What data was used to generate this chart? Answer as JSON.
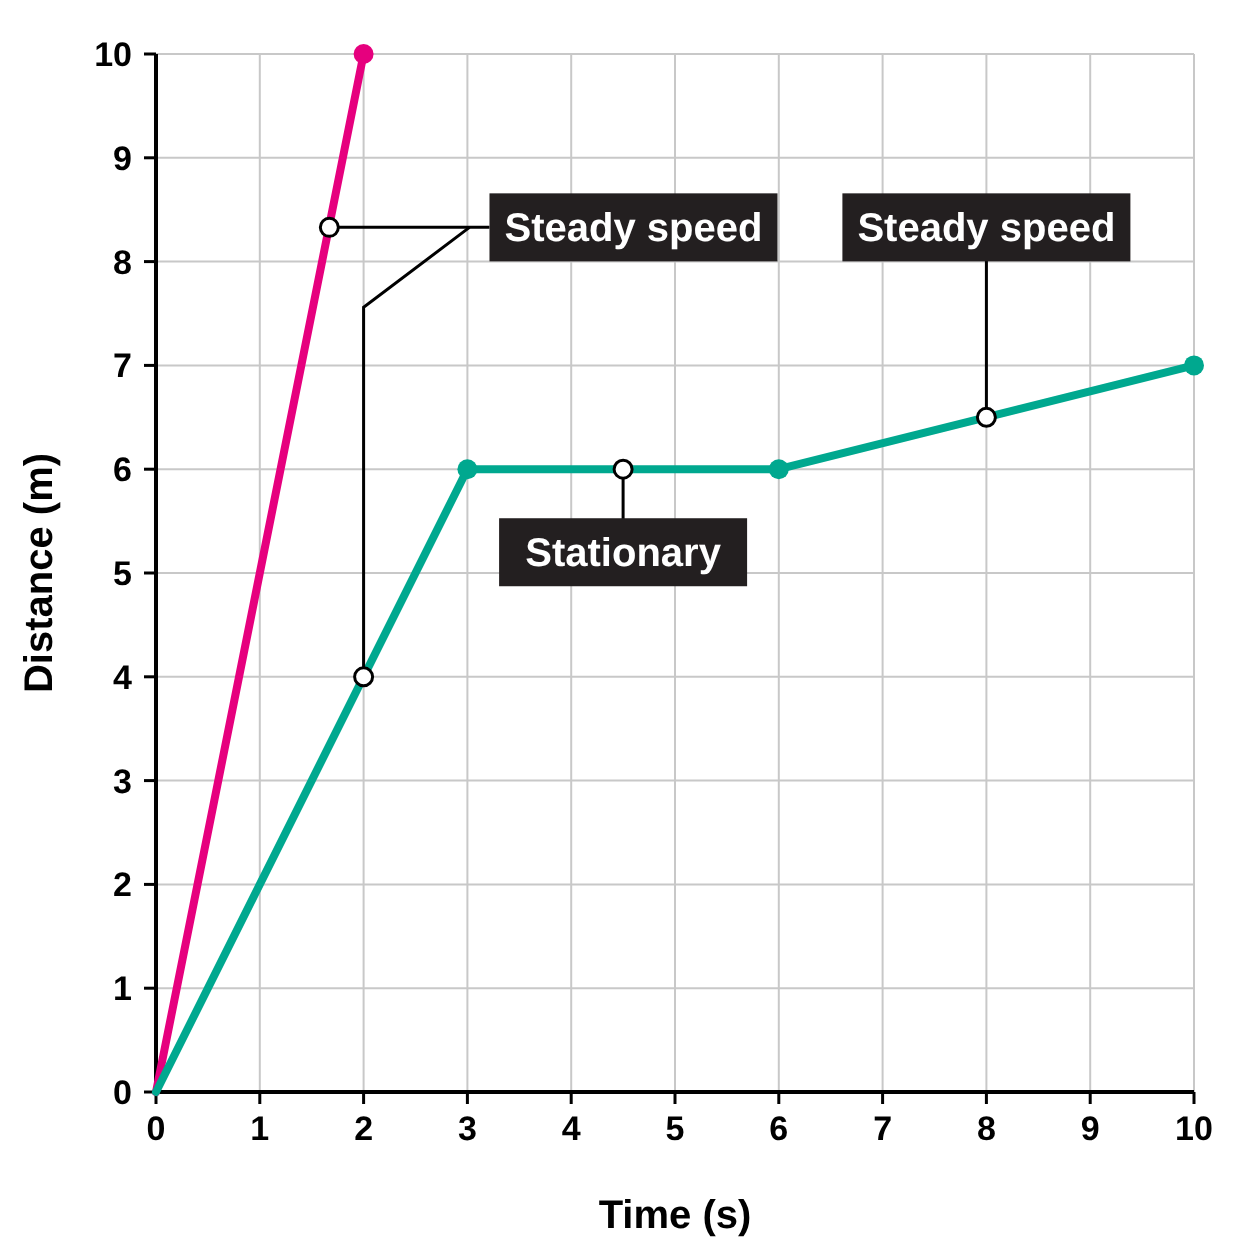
{
  "chart_data": {
    "type": "line",
    "xlabel": "Time (s)",
    "ylabel": "Distance (m)",
    "xlim": [
      0,
      10
    ],
    "ylim": [
      0,
      10
    ],
    "xticks": [
      0,
      1,
      2,
      3,
      4,
      5,
      6,
      7,
      8,
      9,
      10
    ],
    "yticks": [
      0,
      1,
      2,
      3,
      4,
      5,
      6,
      7,
      8,
      9,
      10
    ],
    "grid": true,
    "marker": "circle",
    "line_style": "solid",
    "series": [
      {
        "color": "#e6007e",
        "x": [
          0,
          2
        ],
        "values": [
          0,
          10
        ]
      },
      {
        "color": "#00a88f",
        "x": [
          0,
          3,
          6,
          10
        ],
        "values": [
          0,
          6,
          6,
          7
        ]
      },
      {
        "type": "scatter",
        "color": "#ffffff",
        "x": [
          1.67,
          2,
          4.5,
          8
        ],
        "values": [
          8.33,
          4,
          6,
          6.5
        ]
      }
    ],
    "annotations": [
      "Steady speed",
      {
        "text": "Stationary",
        "x": 4.5,
        "y": 6
      },
      {
        "text": "Steady speed",
        "x": 8,
        "y": 6.5
      }
    ]
  }
}
